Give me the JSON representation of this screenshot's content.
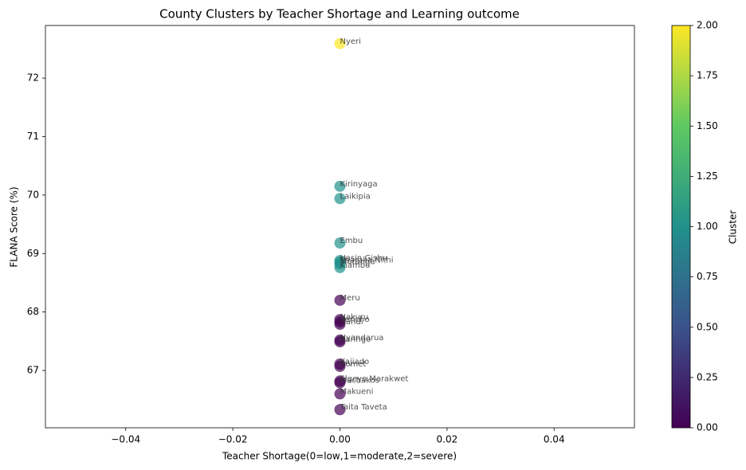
{
  "chart_data": {
    "type": "scatter",
    "title": "County Clusters by Teacher Shortage and Learning outcome",
    "xlabel": "Teacher Shortage(0=low,1=moderate,2=severe)",
    "ylabel": "FLANA Score (%)",
    "labels": [
      "Nyeri",
      "Kirinyaga",
      "Laikipia",
      "Embu",
      "Uasin Gishu",
      "Tharaka Nithi",
      "Muranga",
      "Kiambu",
      "Meru",
      "Nakuru",
      "Kericho",
      "Nandi",
      "Nyandarua",
      "Baringo",
      "Kajiado",
      "Bomet",
      "Elgeyo Marakwet",
      "Machakos",
      "Makueni",
      "Taita Taveta"
    ],
    "x": [
      0,
      0,
      0,
      0,
      0,
      0,
      0,
      0,
      0,
      0,
      0,
      0,
      0,
      0,
      0,
      0,
      0,
      0,
      0,
      0
    ],
    "y": [
      72.59,
      70.15,
      69.94,
      69.18,
      68.88,
      68.85,
      68.82,
      68.76,
      68.2,
      67.87,
      67.83,
      67.79,
      67.52,
      67.49,
      67.11,
      67.07,
      66.82,
      66.79,
      66.6,
      66.33
    ],
    "cluster": [
      2,
      1,
      1,
      1,
      1,
      1,
      1,
      1,
      0,
      0,
      0,
      0,
      0,
      0,
      0,
      0,
      0,
      0,
      0,
      0
    ],
    "xlim": [
      -0.055,
      0.055
    ],
    "xticks": [
      {
        "value": -0.04,
        "label": "−0.04"
      },
      {
        "value": -0.02,
        "label": "−0.02"
      },
      {
        "value": 0,
        "label": "0.00"
      },
      {
        "value": 0.02,
        "label": "0.02"
      },
      {
        "value": 0.04,
        "label": "0.04"
      }
    ],
    "ylim": [
      66.02,
      72.9
    ],
    "yticks": [
      67,
      68,
      69,
      70,
      71,
      72
    ],
    "grid": false,
    "colorbar": {
      "label": "Cluster",
      "clim": [
        0,
        2
      ],
      "colors": [
        "#440154",
        "#3b528b",
        "#21918c",
        "#5ec962",
        "#fde725"
      ],
      "ticks": [
        {
          "value": 0,
          "label": "0.00"
        },
        {
          "value": 0.25,
          "label": "0.25"
        },
        {
          "value": 0.5,
          "label": "0.50"
        },
        {
          "value": 0.75,
          "label": "0.75"
        },
        {
          "value": 1,
          "label": "1.00"
        },
        {
          "value": 1.25,
          "label": "1.25"
        },
        {
          "value": 1.5,
          "label": "1.50"
        },
        {
          "value": 1.75,
          "label": "1.75"
        },
        {
          "value": 2,
          "label": "2.00"
        }
      ]
    }
  }
}
